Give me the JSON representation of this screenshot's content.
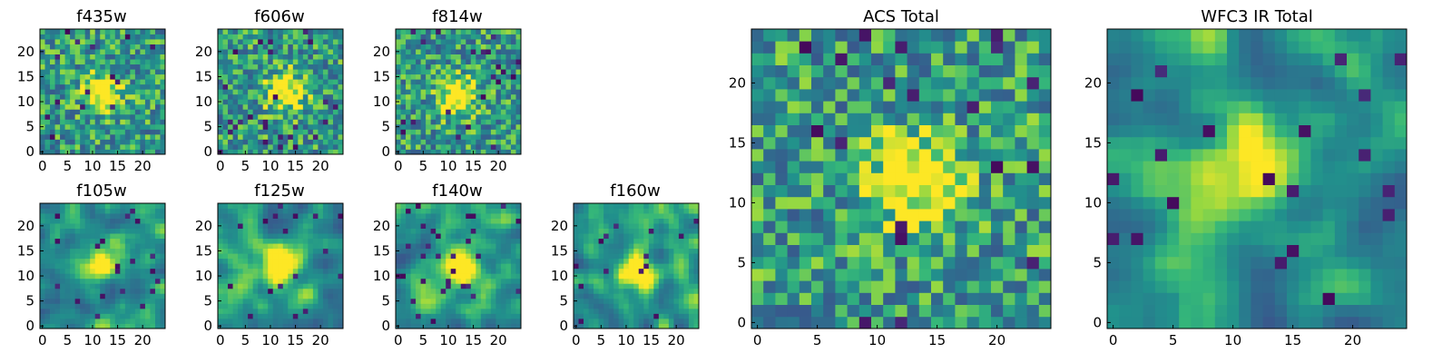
{
  "chart_data": [
    {
      "type": "heatmap",
      "title": "f435w",
      "x_ticks": [
        0,
        5,
        10,
        15,
        20
      ],
      "y_ticks": [
        0,
        5,
        10,
        15,
        20
      ],
      "grid_size": 25,
      "colormap": "viridis",
      "pattern": "noise",
      "seed": 11,
      "bright_center": [
        12,
        12
      ]
    },
    {
      "type": "heatmap",
      "title": "f606w",
      "x_ticks": [
        0,
        5,
        10,
        15,
        20
      ],
      "y_ticks": [
        0,
        5,
        10,
        15,
        20
      ],
      "grid_size": 25,
      "colormap": "viridis",
      "pattern": "noise",
      "seed": 23,
      "bright_center": [
        13,
        12
      ]
    },
    {
      "type": "heatmap",
      "title": "f814w",
      "x_ticks": [
        0,
        5,
        10,
        15,
        20
      ],
      "y_ticks": [
        0,
        5,
        10,
        15,
        20
      ],
      "grid_size": 25,
      "colormap": "viridis",
      "pattern": "noise",
      "seed": 37,
      "bright_center": [
        12,
        11
      ]
    },
    {
      "type": "heatmap",
      "title": "f105w",
      "x_ticks": [
        0,
        5,
        10,
        15,
        20
      ],
      "y_ticks": [
        0,
        5,
        10,
        15,
        20
      ],
      "grid_size": 25,
      "colormap": "viridis",
      "pattern": "smooth",
      "seed": 41,
      "bright_center": [
        12,
        13
      ]
    },
    {
      "type": "heatmap",
      "title": "f125w",
      "x_ticks": [
        0,
        5,
        10,
        15,
        20
      ],
      "y_ticks": [
        0,
        5,
        10,
        15,
        20
      ],
      "grid_size": 25,
      "colormap": "viridis",
      "pattern": "smooth",
      "seed": 53,
      "bright_center": [
        12,
        12
      ]
    },
    {
      "type": "heatmap",
      "title": "f140w",
      "x_ticks": [
        0,
        5,
        10,
        15,
        20
      ],
      "y_ticks": [
        0,
        5,
        10,
        15,
        20
      ],
      "grid_size": 25,
      "colormap": "viridis",
      "pattern": "smooth",
      "seed": 67,
      "bright_center": [
        12,
        12
      ]
    },
    {
      "type": "heatmap",
      "title": "f160w",
      "x_ticks": [
        0,
        5,
        10,
        15,
        20
      ],
      "y_ticks": [
        0,
        5,
        10,
        15,
        20
      ],
      "grid_size": 25,
      "colormap": "viridis",
      "pattern": "smooth",
      "seed": 79,
      "bright_center": [
        12,
        11
      ]
    },
    {
      "type": "heatmap",
      "title": "ACS Total",
      "x_ticks": [
        0,
        5,
        10,
        15,
        20
      ],
      "y_ticks": [
        0,
        5,
        10,
        15,
        20
      ],
      "grid_size": 25,
      "colormap": "viridis",
      "pattern": "noise",
      "seed": 97,
      "bright_center": [
        13,
        12
      ]
    },
    {
      "type": "heatmap",
      "title": "WFC3 IR Total",
      "x_ticks": [
        0,
        5,
        10,
        15,
        20
      ],
      "y_ticks": [
        0,
        5,
        10,
        15,
        20
      ],
      "grid_size": 25,
      "colormap": "viridis",
      "pattern": "smooth",
      "seed": 101,
      "bright_center": [
        12,
        13
      ]
    }
  ]
}
